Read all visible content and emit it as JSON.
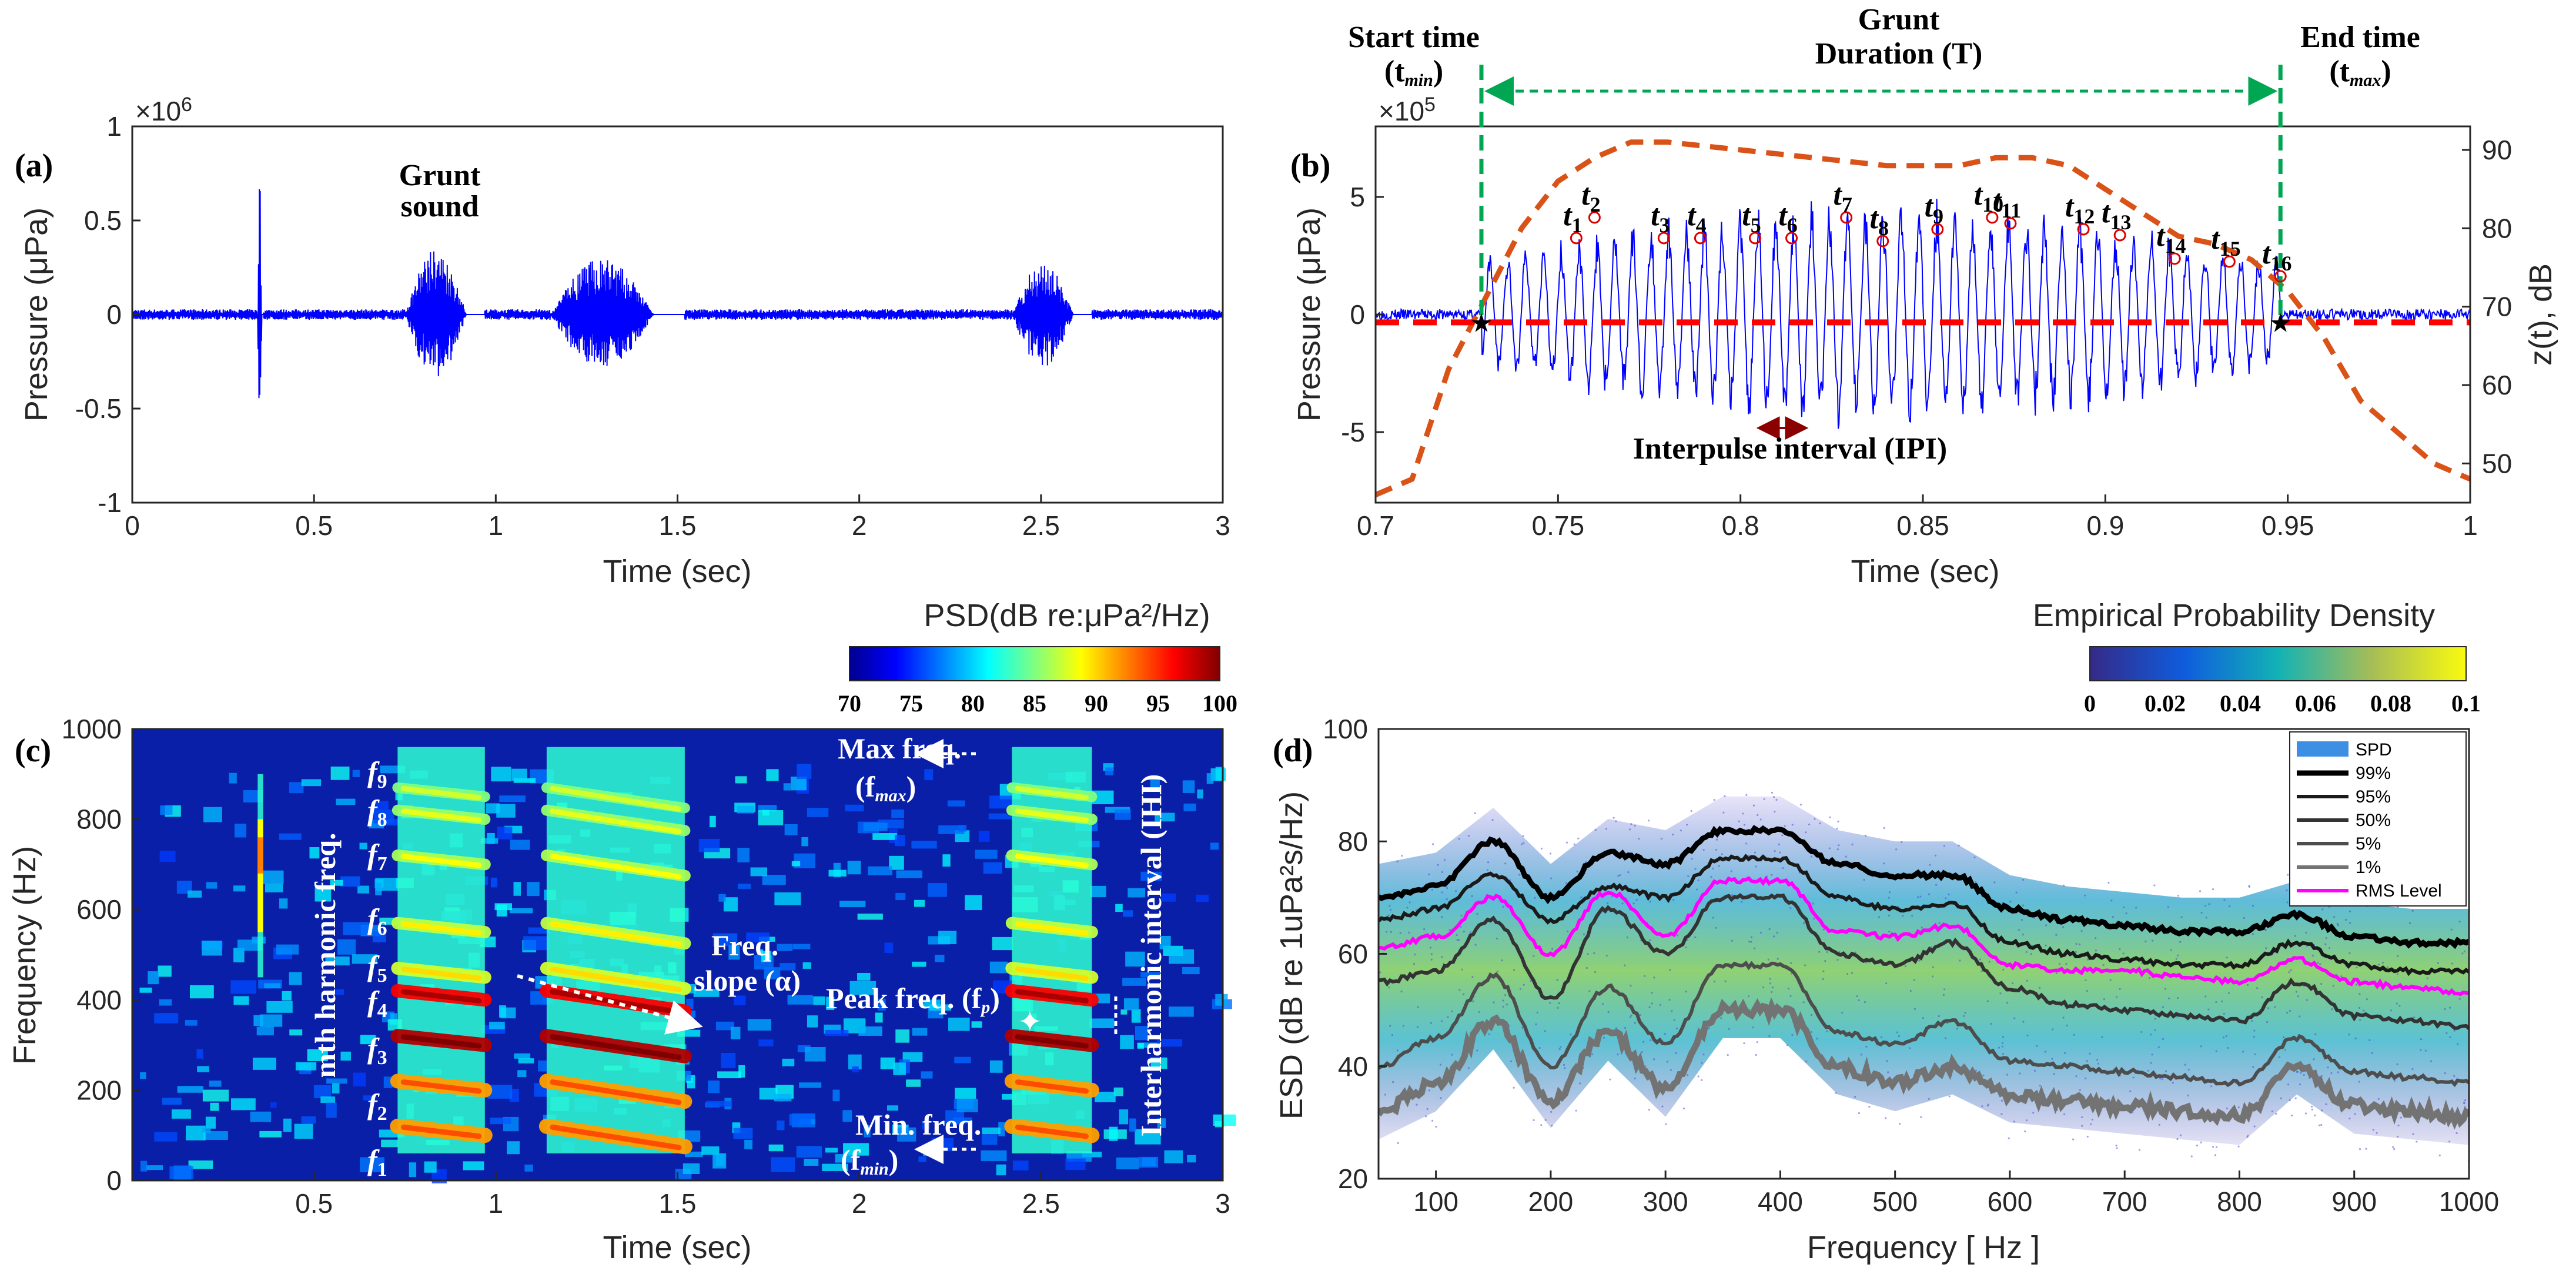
{
  "panels": {
    "a": {
      "label": "(a)"
    },
    "b": {
      "label": "(b)"
    },
    "c": {
      "label": "(c)"
    },
    "d": {
      "label": "(d)"
    }
  },
  "chart_data": [
    {
      "id": "a",
      "type": "line",
      "title": "",
      "xlabel": "Time (sec)",
      "ylabel": "Pressure (μPa)",
      "xlim": [
        0,
        3
      ],
      "ylim": [
        -1,
        1
      ],
      "exponent": "×10^6",
      "x_ticks": [
        "0",
        "0.5",
        "1",
        "1.5",
        "2",
        "2.5",
        "3"
      ],
      "y_ticks": [
        "-1",
        "-0.5",
        "0",
        "0.5",
        "1"
      ],
      "series": [
        {
          "name": "pressure",
          "color": "#0000ff",
          "bursts": [
            {
              "start": 0.345,
              "end": 0.36,
              "amp": 0.75
            },
            {
              "start": 0.75,
              "end": 0.97,
              "amp": 0.35
            },
            {
              "start": 1.15,
              "end": 1.52,
              "amp": 0.3
            },
            {
              "start": 2.42,
              "end": 2.64,
              "amp": 0.28
            }
          ],
          "noise_amp": 0.02
        }
      ],
      "annotations": [
        {
          "text1": "Grunt",
          "text2": "sound"
        }
      ]
    },
    {
      "id": "b",
      "type": "line",
      "xlabel": "Time (sec)",
      "ylabel_left": "Pressure (μPa)",
      "ylabel_right": "z(t), dB",
      "xlim": [
        0.7,
        1.0
      ],
      "ylim_left": [
        -8,
        8
      ],
      "ylim_right": [
        45,
        93
      ],
      "exponent": "×10^5",
      "x_ticks": [
        "0.7",
        "0.75",
        "0.8",
        "0.85",
        "0.9",
        "0.95",
        "1"
      ],
      "y_ticks_left": [
        "-5",
        "0",
        "5"
      ],
      "y_ticks_right": [
        "50",
        "60",
        "70",
        "80",
        "90"
      ],
      "start_time": 0.729,
      "end_time": 0.948,
      "pulse_times": [
        0.755,
        0.76,
        0.779,
        0.789,
        0.804,
        0.814,
        0.829,
        0.839,
        0.854,
        0.869,
        0.874,
        0.894,
        0.904,
        0.919,
        0.934,
        0.948
      ],
      "pulse_labels": [
        "t1",
        "t2",
        "t3",
        "t4",
        "t5",
        "t6",
        "t7",
        "t8",
        "t9",
        "t10",
        "t11",
        "t12",
        "t13",
        "t14",
        "t15",
        "t16"
      ],
      "envelope_db": {
        "x": [
          0.7,
          0.71,
          0.72,
          0.73,
          0.74,
          0.75,
          0.76,
          0.77,
          0.78,
          0.8,
          0.82,
          0.84,
          0.86,
          0.87,
          0.88,
          0.89,
          0.9,
          0.91,
          0.92,
          0.93,
          0.94,
          0.95,
          0.96,
          0.97,
          0.98,
          0.99,
          1.0
        ],
        "y": [
          46,
          48,
          62,
          71,
          80,
          86,
          89,
          91,
          91,
          90,
          89,
          88,
          88,
          89,
          89,
          88,
          85,
          82,
          79,
          78,
          76,
          72,
          66,
          58,
          54,
          50,
          48
        ]
      },
      "threshold_db": 68,
      "texts": {
        "start1": "Start time",
        "start2": "(t",
        "start_sub": "min",
        "end1": "End time",
        "end2": "(t",
        "end_sub": "max",
        "grunt": "Grunt",
        "duration": "Duration (T)",
        "ipi": "Interpulse interval (IPI)"
      },
      "colors": {
        "signal": "#0000ff",
        "envelope": "#d95319",
        "threshold": "#ff0000",
        "guide": "#00a651"
      }
    },
    {
      "id": "c",
      "type": "heatmap",
      "xlabel": "Time (sec)",
      "ylabel": "Frequency (Hz)",
      "xlim": [
        0,
        3
      ],
      "ylim": [
        0,
        1000
      ],
      "x_ticks": [
        "0.5",
        "1",
        "1.5",
        "2",
        "2.5",
        "3"
      ],
      "y_ticks": [
        "0",
        "200",
        "400",
        "600",
        "800",
        "1000"
      ],
      "colorbar": {
        "title": "PSD(dB re:μPa²/Hz)",
        "ticks": [
          "70",
          "75",
          "80",
          "85",
          "90",
          "95",
          "100"
        ]
      },
      "harmonic_labels": [
        "f1",
        "f2",
        "f3",
        "f4",
        "f5",
        "f6",
        "f7",
        "f8",
        "f9"
      ],
      "harmonics_hz": [
        100,
        200,
        300,
        400,
        450,
        550,
        700,
        800,
        850
      ],
      "bursts": [
        {
          "start": 0.345,
          "end": 0.36,
          "fmin": 450,
          "fmax": 900
        },
        {
          "start": 0.73,
          "end": 0.97,
          "fmin": 60,
          "fmax": 960
        },
        {
          "start": 1.14,
          "end": 1.52,
          "fmin": 60,
          "fmax": 960
        },
        {
          "start": 2.42,
          "end": 2.64,
          "fmin": 60,
          "fmax": 960
        }
      ],
      "texts": {
        "mth": "mth harmonic freq.",
        "max1": "Max freq.",
        "max2": "(f",
        "max_sub": "max",
        "slope1": "Freq.",
        "slope2": "slope (α)",
        "peak": "Peak freq. (f",
        "peak_sub": "p",
        "min1": "Min.  freq.",
        "min2": "(f",
        "min_sub": "min",
        "ihi": "Interharmonic interval (IHI)"
      }
    },
    {
      "id": "d",
      "type": "line",
      "xlabel": "Frequency [ Hz ]",
      "ylabel": "ESD (dB re 1uPa²s/Hz)",
      "xlim": [
        50,
        1000
      ],
      "ylim": [
        20,
        100
      ],
      "x_ticks": [
        "100",
        "200",
        "300",
        "400",
        "500",
        "600",
        "700",
        "800",
        "900",
        "1000"
      ],
      "y_ticks": [
        "20",
        "40",
        "60",
        "80",
        "100"
      ],
      "colorbar": {
        "title": "Empirical Probability Density",
        "ticks": [
          "0",
          "0.02",
          "0.04",
          "0.06",
          "0.08",
          "0.1"
        ]
      },
      "legend": [
        "SPD",
        "99%",
        "95%",
        "50%",
        "5%",
        "1%",
        "RMS Level"
      ],
      "legend_colors": [
        "#3d8fe3",
        "#000000",
        "#1a1a1a",
        "#333333",
        "#4d4d4d",
        "#737373",
        "#ff00ff"
      ],
      "x": [
        50,
        100,
        150,
        200,
        250,
        300,
        350,
        400,
        450,
        500,
        550,
        600,
        650,
        700,
        750,
        800,
        850,
        900,
        950,
        1000
      ],
      "series": [
        {
          "name": "99%",
          "values": [
            70,
            72,
            80,
            70,
            78,
            76,
            82,
            82,
            76,
            74,
            74,
            68,
            66,
            65,
            64,
            64,
            67,
            63,
            62,
            62
          ]
        },
        {
          "name": "95%",
          "values": [
            66,
            68,
            74,
            66,
            72,
            70,
            77,
            77,
            70,
            68,
            69,
            62,
            60,
            59,
            58,
            58,
            62,
            58,
            57,
            57
          ]
        },
        {
          "name": "RMS Level",
          "values": [
            61,
            63,
            70,
            60,
            71,
            63,
            73,
            73,
            64,
            63,
            65,
            58,
            57,
            57,
            56,
            55,
            59,
            55,
            54,
            53
          ]
        },
        {
          "name": "50%",
          "values": [
            55,
            57,
            66,
            52,
            68,
            60,
            70,
            70,
            60,
            58,
            62,
            54,
            51,
            50,
            49,
            48,
            55,
            49,
            48,
            47
          ]
        },
        {
          "name": "5%",
          "values": [
            40,
            45,
            56,
            40,
            54,
            44,
            58,
            58,
            46,
            44,
            48,
            41,
            40,
            39,
            38,
            37,
            45,
            39,
            38,
            37
          ]
        },
        {
          "name": "1%",
          "values": [
            32,
            37,
            48,
            34,
            46,
            36,
            50,
            50,
            40,
            37,
            40,
            35,
            34,
            33,
            32,
            31,
            40,
            33,
            32,
            31
          ]
        }
      ]
    }
  ]
}
